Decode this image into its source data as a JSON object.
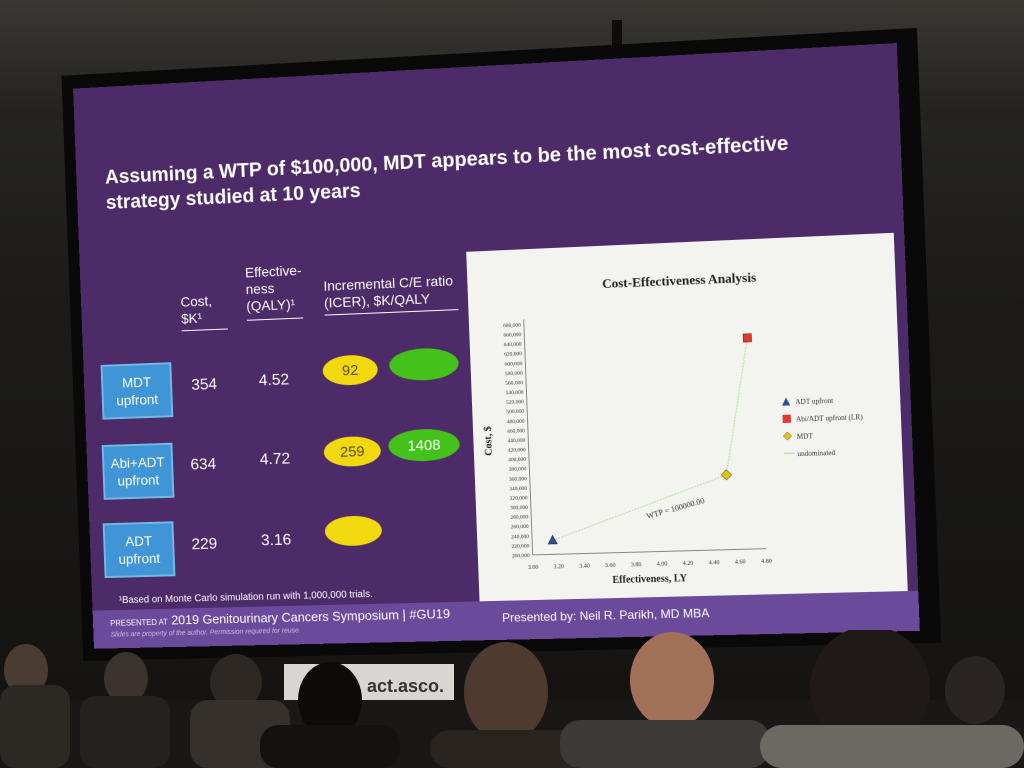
{
  "slide": {
    "title": "Assuming a WTP of $100,000, MDT appears to be the most cost-effective strategy studied at 10 years",
    "headers": {
      "cost_l1": "Cost,",
      "cost_l2": "$K¹",
      "eff_l1": "Effective-",
      "eff_l2": "ness",
      "eff_l3": "(QALY)¹",
      "icer_l1": "Incremental C/E ratio",
      "icer_l2": "(ICER), $K/QALY"
    },
    "rows": [
      {
        "label_l1": "MDT",
        "label_l2": "upfront",
        "cost": "354",
        "eff": "4.52",
        "icer1": "92",
        "icer2": ""
      },
      {
        "label_l1": "Abi+ADT",
        "label_l2": "upfront",
        "cost": "634",
        "eff": "4.72",
        "icer1": "259",
        "icer2": "1408"
      },
      {
        "label_l1": "ADT",
        "label_l2": "upfront",
        "cost": "229",
        "eff": "3.16",
        "icer1": "",
        "icer2": ""
      }
    ],
    "footnote": "¹Based on Monte Carlo simulation run with 1,000,000 trials.",
    "footer": {
      "presented_at": "PRESENTED AT",
      "event": "2019 Genitourinary Cancers Symposium  |  #GU19",
      "disclaimer": "Slides are property of the author. Permission required for reuse.",
      "presenter": "Presented by: Neil R. Parikh, MD MBA"
    },
    "colors": {
      "slide_bg": "#4d2b68",
      "yellow": "#f2d80f",
      "green": "#44c21b",
      "button": "#3f95d6"
    }
  },
  "chart_data": {
    "type": "scatter",
    "title": "Cost-Effectiveness Analysis",
    "xlabel": "Effectiveness, LY",
    "ylabel": "Cost, $",
    "xlim": [
      3.0,
      4.8
    ],
    "ylim": [
      200000,
      680000
    ],
    "x_ticks": [
      "3.00",
      "3.20",
      "3.40",
      "3.60",
      "3.80",
      "4.00",
      "4.20",
      "4.40",
      "4.60",
      "4.80"
    ],
    "y_ticks": [
      "200,000",
      "220,000",
      "240,000",
      "260,000",
      "280,000",
      "300,000",
      "320,000",
      "340,000",
      "360,000",
      "380,000",
      "400,000",
      "420,000",
      "440,000",
      "460,000",
      "480,000",
      "500,000",
      "520,000",
      "540,000",
      "560,000",
      "580,000",
      "600,000",
      "620,000",
      "640,000",
      "660,000",
      "680,000"
    ],
    "series": [
      {
        "name": "ADT upfront",
        "marker": "triangle",
        "color": "#2f4f9a",
        "x": [
          3.16
        ],
        "y": [
          229000
        ]
      },
      {
        "name": "Abi/ADT upfront (LR)",
        "marker": "square",
        "color": "#e03a2c",
        "x": [
          4.72
        ],
        "y": [
          634000
        ]
      },
      {
        "name": "MDT",
        "marker": "diamond",
        "color": "#e6c21a",
        "x": [
          4.52
        ],
        "y": [
          354000
        ]
      },
      {
        "name": "undominated",
        "marker": "line",
        "color": "#b9e3a4",
        "x": [
          3.16,
          4.52,
          4.72
        ],
        "y": [
          229000,
          354000,
          634000
        ]
      }
    ],
    "annotation": "WTP = 100000.00",
    "legend": "right"
  }
}
